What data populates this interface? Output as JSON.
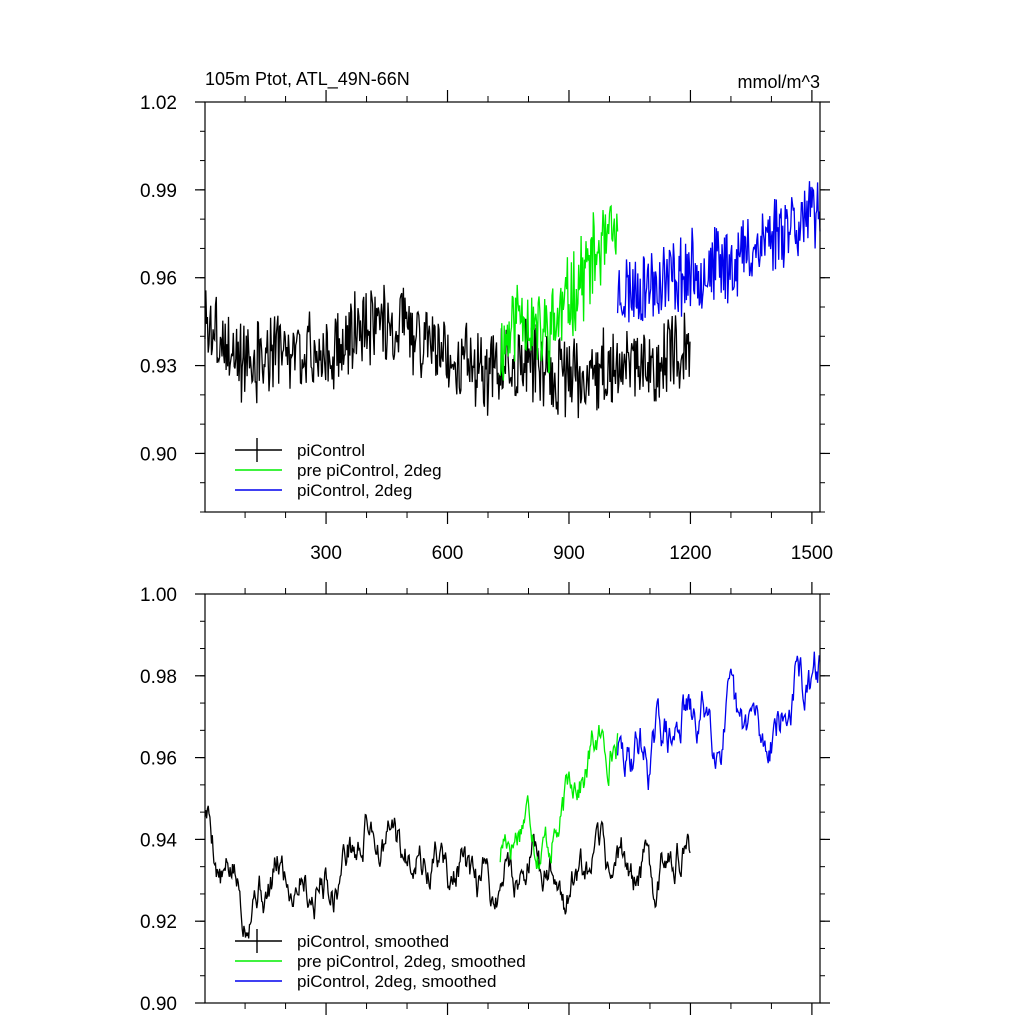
{
  "colors": {
    "black": "#000000",
    "green": "#00ee00",
    "blue": "#0000ee"
  },
  "chart_data": [
    {
      "type": "line",
      "title": "105m Ptot, ATL_49N-66N",
      "units": "mmol/m^3",
      "xlim": [
        1,
        1520
      ],
      "ylim": [
        0.88,
        1.02
      ],
      "yticks": [
        "0.90",
        "0.93",
        "0.96",
        "0.99",
        "1.02"
      ],
      "ytick_values": [
        0.9,
        0.93,
        0.96,
        0.99,
        1.02
      ],
      "xticks": [
        "300",
        "600",
        "900",
        "1200",
        "1500"
      ],
      "xtick_values": [
        300,
        600,
        900,
        1200,
        1500
      ],
      "grid": false,
      "legend_position": "lower-left",
      "series": [
        {
          "name": "piControl",
          "color": "#000000",
          "x_start": 1,
          "x_end": 1200,
          "level_points": [
            [
              1,
              0.945
            ],
            [
              100,
              0.93
            ],
            [
              200,
              0.935
            ],
            [
              300,
              0.933
            ],
            [
              400,
              0.945
            ],
            [
              500,
              0.943
            ],
            [
              600,
              0.935
            ],
            [
              700,
              0.928
            ],
            [
              800,
              0.932
            ],
            [
              900,
              0.925
            ],
            [
              1000,
              0.93
            ],
            [
              1100,
              0.93
            ],
            [
              1200,
              0.935
            ]
          ],
          "amplitude": 0.012,
          "seed": 3
        },
        {
          "name": "pre piControl, 2deg",
          "color": "#00ee00",
          "x_start": 730,
          "x_end": 1020,
          "level_points": [
            [
              730,
              0.935
            ],
            [
              780,
              0.95
            ],
            [
              830,
              0.94
            ],
            [
              870,
              0.945
            ],
            [
              920,
              0.958
            ],
            [
              970,
              0.968
            ],
            [
              1020,
              0.975
            ]
          ],
          "amplitude": 0.013,
          "seed": 11
        },
        {
          "name": "piControl, 2deg",
          "color": "#0000ee",
          "x_start": 1020,
          "x_end": 1520,
          "level_points": [
            [
              1020,
              0.955
            ],
            [
              1100,
              0.958
            ],
            [
              1200,
              0.962
            ],
            [
              1300,
              0.965
            ],
            [
              1400,
              0.975
            ],
            [
              1450,
              0.98
            ],
            [
              1520,
              0.98
            ]
          ],
          "amplitude": 0.012,
          "seed": 23
        }
      ]
    },
    {
      "type": "line",
      "xlim": [
        1,
        1520
      ],
      "ylim": [
        0.9,
        1.0
      ],
      "yticks": [
        "0.90",
        "0.92",
        "0.94",
        "0.96",
        "0.98",
        "1.00"
      ],
      "ytick_values": [
        0.9,
        0.92,
        0.94,
        0.96,
        0.98,
        1.0
      ],
      "xtick_values": [
        300,
        600,
        900,
        1200,
        1500
      ],
      "grid": false,
      "legend_position": "lower-left",
      "series": [
        {
          "name": "piControl, smoothed",
          "color": "#000000",
          "x_start": 1,
          "x_end": 1200,
          "level_points": [
            [
              1,
              0.947
            ],
            [
              30,
              0.935
            ],
            [
              100,
              0.925
            ],
            [
              200,
              0.932
            ],
            [
              300,
              0.928
            ],
            [
              400,
              0.942
            ],
            [
              500,
              0.937
            ],
            [
              600,
              0.933
            ],
            [
              700,
              0.927
            ],
            [
              800,
              0.935
            ],
            [
              900,
              0.928
            ],
            [
              1000,
              0.935
            ],
            [
              1100,
              0.93
            ],
            [
              1170,
              0.94
            ],
            [
              1200,
              0.933
            ]
          ],
          "amplitude": 0.006,
          "seed": 5
        },
        {
          "name": "pre piControl, 2deg, smoothed",
          "color": "#00ee00",
          "x_start": 730,
          "x_end": 1020,
          "level_points": [
            [
              730,
              0.935
            ],
            [
              770,
              0.945
            ],
            [
              810,
              0.945
            ],
            [
              850,
              0.937
            ],
            [
              900,
              0.952
            ],
            [
              950,
              0.96
            ],
            [
              1000,
              0.965
            ],
            [
              1020,
              0.962
            ]
          ],
          "amplitude": 0.006,
          "seed": 17
        },
        {
          "name": "piControl, 2deg, smoothed",
          "color": "#0000ee",
          "x_start": 1020,
          "x_end": 1520,
          "level_points": [
            [
              1020,
              0.96
            ],
            [
              1100,
              0.962
            ],
            [
              1200,
              0.97
            ],
            [
              1300,
              0.968
            ],
            [
              1400,
              0.965
            ],
            [
              1450,
              0.975
            ],
            [
              1520,
              0.98
            ]
          ],
          "amplitude": 0.007,
          "seed": 29
        }
      ]
    }
  ]
}
